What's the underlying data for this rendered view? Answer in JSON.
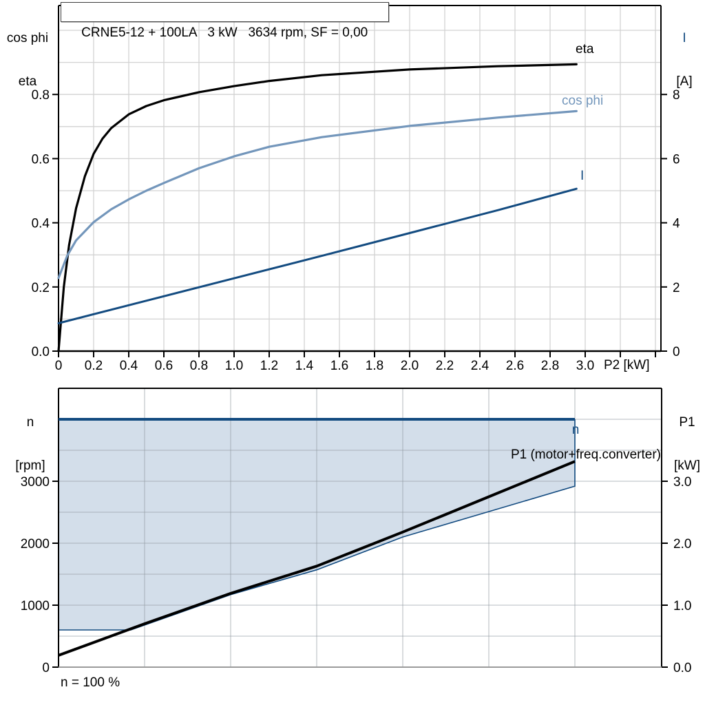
{
  "chart_data": [
    {
      "type": "line",
      "title": "CRNE5-12 + 100LA   3 kW   3634 rpm, SF = 0,00",
      "x_axis": {
        "label": "P2 [kW]",
        "min": 0,
        "max": 3.43,
        "gridline_step": 0.2,
        "ticks": [
          {
            "v": 0,
            "t": "0"
          },
          {
            "v": 0.2,
            "t": "0.2"
          },
          {
            "v": 0.4,
            "t": "0.4"
          },
          {
            "v": 0.6,
            "t": "0.6"
          },
          {
            "v": 0.8,
            "t": "0.8"
          },
          {
            "v": 1.0,
            "t": "1.0"
          },
          {
            "v": 1.2,
            "t": "1.2"
          },
          {
            "v": 1.4,
            "t": "1.4"
          },
          {
            "v": 1.6,
            "t": "1.6"
          },
          {
            "v": 1.8,
            "t": "1.8"
          },
          {
            "v": 2.0,
            "t": "2.0"
          },
          {
            "v": 2.2,
            "t": "2.2"
          },
          {
            "v": 2.4,
            "t": "2.4"
          },
          {
            "v": 2.6,
            "t": "2.6"
          },
          {
            "v": 2.8,
            "t": "2.8"
          },
          {
            "v": 3.0,
            "t": "3.0"
          },
          {
            "v": 3.2,
            "t": ""
          },
          {
            "v": 3.4,
            "t": ""
          }
        ]
      },
      "y_axis_left": {
        "label_lines": [
          "cos phi",
          "eta"
        ],
        "min": 0,
        "max": 1.077,
        "gridline_step": 0.1,
        "ticks": [
          {
            "v": 0.0,
            "t": "0.0"
          },
          {
            "v": 0.2,
            "t": "0.2"
          },
          {
            "v": 0.4,
            "t": "0.4"
          },
          {
            "v": 0.6,
            "t": "0.6"
          },
          {
            "v": 0.8,
            "t": "0.8"
          }
        ]
      },
      "y_axis_right": {
        "label_lines": [
          "I",
          "[A]"
        ],
        "min": 0,
        "max": 10.77,
        "ticks": [
          {
            "v": 0,
            "t": "0"
          },
          {
            "v": 2,
            "t": "2"
          },
          {
            "v": 4,
            "t": "4"
          },
          {
            "v": 6,
            "t": "6"
          },
          {
            "v": 8,
            "t": "8"
          }
        ]
      },
      "grid": true,
      "legend_position": "inline-labels",
      "series": [
        {
          "name": "eta",
          "label": "eta",
          "axis": "left",
          "color": "#000000",
          "width": 3.2,
          "points": [
            [
              0,
              0
            ],
            [
              0.03,
              0.2
            ],
            [
              0.06,
              0.33
            ],
            [
              0.1,
              0.445
            ],
            [
              0.15,
              0.545
            ],
            [
              0.2,
              0.615
            ],
            [
              0.25,
              0.662
            ],
            [
              0.3,
              0.695
            ],
            [
              0.4,
              0.738
            ],
            [
              0.5,
              0.764
            ],
            [
              0.6,
              0.782
            ],
            [
              0.8,
              0.807
            ],
            [
              1.0,
              0.826
            ],
            [
              1.2,
              0.842
            ],
            [
              1.5,
              0.86
            ],
            [
              2.0,
              0.878
            ],
            [
              2.5,
              0.888
            ],
            [
              2.95,
              0.894
            ]
          ]
        },
        {
          "name": "cos phi",
          "label": "cos phi",
          "axis": "left",
          "color": "#7396bb",
          "width": 3.2,
          "points": [
            [
              0,
              0.228
            ],
            [
              0.05,
              0.298
            ],
            [
              0.1,
              0.345
            ],
            [
              0.2,
              0.402
            ],
            [
              0.3,
              0.442
            ],
            [
              0.4,
              0.473
            ],
            [
              0.5,
              0.5
            ],
            [
              0.6,
              0.524
            ],
            [
              0.8,
              0.57
            ],
            [
              1.0,
              0.607
            ],
            [
              1.2,
              0.637
            ],
            [
              1.5,
              0.667
            ],
            [
              2.0,
              0.702
            ],
            [
              2.5,
              0.728
            ],
            [
              2.95,
              0.748
            ]
          ]
        },
        {
          "name": "I",
          "label": "I",
          "axis": "right",
          "color": "#134b80",
          "width": 3,
          "points": [
            [
              0,
              0.87
            ],
            [
              0.5,
              1.57
            ],
            [
              1.0,
              2.27
            ],
            [
              1.5,
              2.97
            ],
            [
              2.0,
              3.68
            ],
            [
              2.5,
              4.39
            ],
            [
              2.95,
              5.06
            ]
          ]
        }
      ]
    },
    {
      "type": "line",
      "x_axis": {
        "label": "",
        "min": 0,
        "max": 3.5,
        "gridline_step": 0.5,
        "ticks": []
      },
      "y_axis_left": {
        "label_lines": [
          "n",
          "[rpm]"
        ],
        "min": 0,
        "max": 4500,
        "gridline_step": 500,
        "ticks": [
          {
            "v": 0,
            "t": "0"
          },
          {
            "v": 1000,
            "t": "1000"
          },
          {
            "v": 2000,
            "t": "2000"
          },
          {
            "v": 3000,
            "t": "3000"
          }
        ]
      },
      "y_axis_right": {
        "label_lines": [
          "P1",
          "[kW]"
        ],
        "min": 0,
        "max": 4.5,
        "gridline_step": 0.5,
        "ticks": [
          {
            "v": 0,
            "t": "0.0"
          },
          {
            "v": 1,
            "t": "1.0"
          },
          {
            "v": 2,
            "t": "2.0"
          },
          {
            "v": 3,
            "t": "3.0"
          }
        ]
      },
      "grid": true,
      "region": {
        "name": "speed-control-range",
        "fill": "#d3deea",
        "outline_color": "#134b80",
        "top_rpm": 4000,
        "x_range": [
          0,
          3.0
        ],
        "lower_boundary_rpm": [
          [
            0,
            600
          ],
          [
            0.42,
            600
          ],
          [
            1.0,
            1170
          ],
          [
            1.5,
            1570
          ],
          [
            2.0,
            2100
          ],
          [
            3.0,
            2920
          ]
        ]
      },
      "series": [
        {
          "name": "n",
          "label": "n",
          "axis": "left",
          "color": "#134b80",
          "width": 4,
          "points": [
            [
              0,
              4000
            ],
            [
              3.0,
              4000
            ]
          ]
        },
        {
          "name": "P1",
          "label": "P1 (motor+freq.converter)",
          "axis": "right",
          "color": "#000000",
          "width": 4,
          "points": [
            [
              0,
              0.19
            ],
            [
              0.5,
              0.7
            ],
            [
              1.0,
              1.19
            ],
            [
              1.5,
              1.63
            ],
            [
              2.0,
              2.18
            ],
            [
              2.5,
              2.75
            ],
            [
              3.0,
              3.32
            ]
          ]
        }
      ],
      "annotation": "n = 100 %"
    }
  ]
}
